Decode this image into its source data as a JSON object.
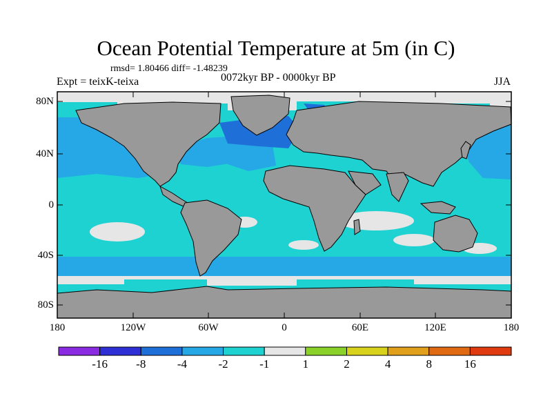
{
  "title": "Ocean Potential Temperature at 5m (in C)",
  "stats": "rmsd= 1.80466 diff= -1.48239",
  "experiment": "Expt = teixK-teixa",
  "period": "0072kyr BP - 0000kyr BP",
  "season": "JJA",
  "lat_ticks": [
    "80N",
    "40N",
    "0",
    "40S",
    "80S"
  ],
  "lon_ticks": [
    "180",
    "120W",
    "60W",
    "0",
    "60E",
    "120E",
    "180"
  ],
  "colorbar": {
    "colors": [
      "#8a2be2",
      "#2f2fd6",
      "#1f6fd8",
      "#26a7e6",
      "#1ed2d2",
      "#e6e6e6",
      "#8ad12a",
      "#d8d21c",
      "#e0a01c",
      "#e06a12",
      "#e03a10"
    ],
    "labels": [
      "-16",
      "-8",
      "-4",
      "-2",
      "-1",
      "1",
      "2",
      "4",
      "8",
      "16"
    ]
  },
  "colors": {
    "land": "#999999",
    "ocean": "#1ed2d2",
    "cool": "#26a7e6",
    "cold": "#1f6fd8",
    "ice": "#e6e6e6",
    "frame": "#000000"
  }
}
